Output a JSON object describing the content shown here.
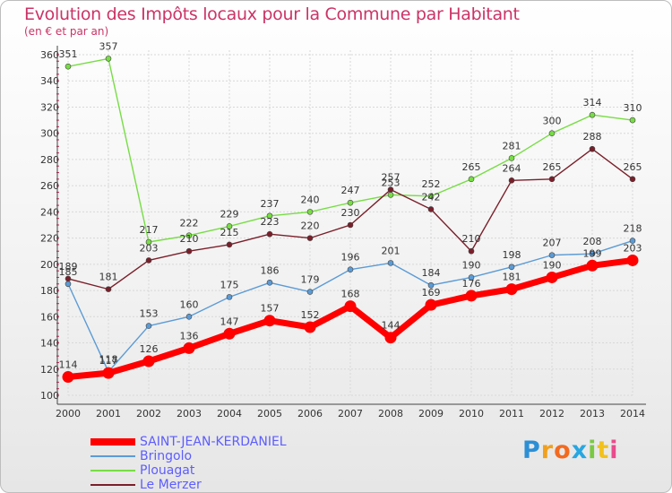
{
  "header": {
    "title": "Evolution des Impôts locaux pour la Commune par Habitant",
    "subtitle": "(en € et par an)"
  },
  "brand": {
    "letters": [
      "P",
      "r",
      "o",
      "x",
      "i",
      "t",
      "i"
    ],
    "colors": [
      "#2b8fd6",
      "#f0a01c",
      "#f26a1f",
      "#29a6e0",
      "#7ac943",
      "#f2c11c",
      "#e94b8c"
    ]
  },
  "chart_data": {
    "type": "line",
    "title": "Evolution des Impôts locaux pour la Commune par Habitant",
    "subtitle": "(en € et par an)",
    "x": [
      "2000",
      "2001",
      "2002",
      "2003",
      "2004",
      "2005",
      "2006",
      "2007",
      "2008",
      "2009",
      "2010",
      "2011",
      "2012",
      "2013",
      "2014"
    ],
    "ylim": [
      100,
      360
    ],
    "yticks": [
      100,
      120,
      140,
      160,
      180,
      200,
      220,
      240,
      260,
      280,
      300,
      320,
      340,
      360
    ],
    "grid": true,
    "series": [
      {
        "name": "Plouagat",
        "color": "#77dd44",
        "values": [
          351,
          357,
          217,
          222,
          229,
          237,
          240,
          247,
          253,
          252,
          265,
          281,
          300,
          314,
          310
        ]
      },
      {
        "name": "Le Merzer",
        "color": "#7a1f2a",
        "values": [
          189,
          181,
          203,
          210,
          215,
          223,
          220,
          230,
          257,
          242,
          210,
          264,
          265,
          288,
          265
        ]
      },
      {
        "name": "Bringolo",
        "color": "#5b9bd5",
        "values": [
          185,
          118,
          153,
          160,
          175,
          186,
          179,
          196,
          201,
          184,
          190,
          198,
          207,
          208,
          218
        ]
      },
      {
        "name": "SAINT-JEAN-KERDANIEL",
        "color": "#ff0000",
        "values": [
          114,
          117,
          126,
          136,
          147,
          157,
          152,
          168,
          144,
          169,
          176,
          181,
          190,
          199,
          203
        ]
      }
    ],
    "legend_order": [
      "SAINT-JEAN-KERDANIEL",
      "Bringolo",
      "Plouagat",
      "Le Merzer"
    ]
  }
}
